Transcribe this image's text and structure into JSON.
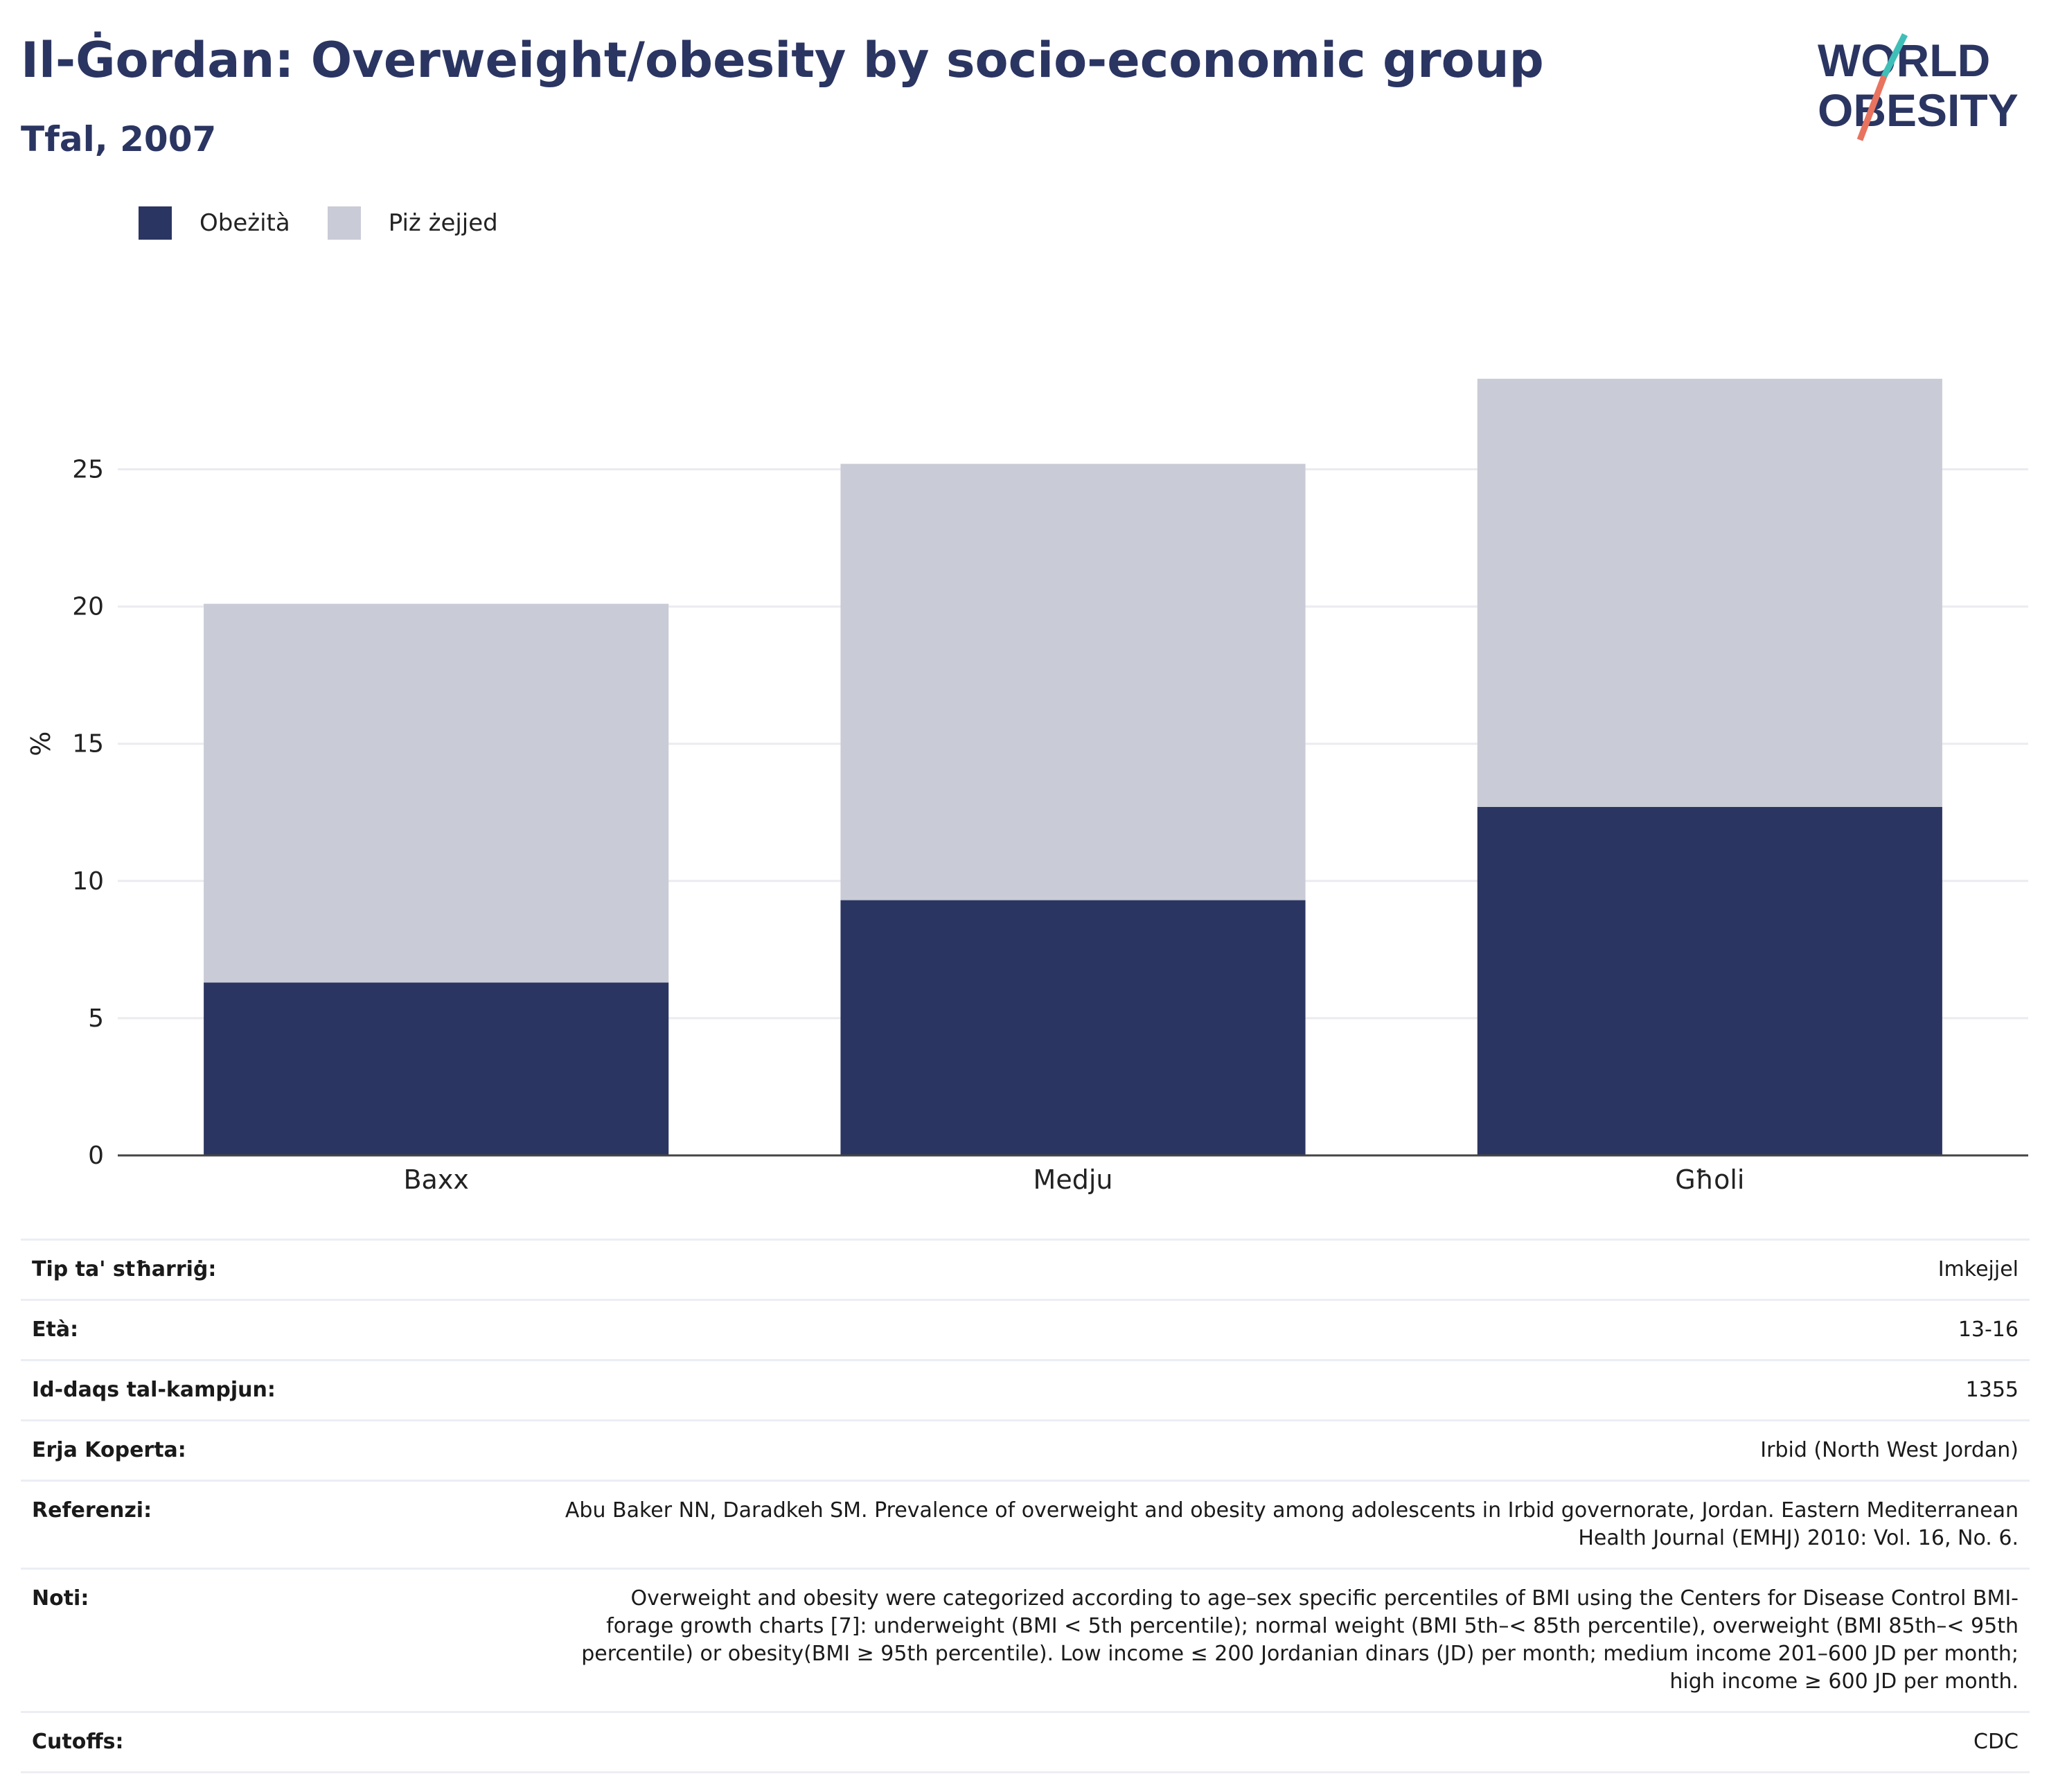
{
  "header": {
    "title": "Il-Ġordan: Overweight/obesity by socio-economic group",
    "subtitle": "Tfal, 2007"
  },
  "logo": {
    "line1": "WORLD",
    "line2": "OBESITY",
    "colors": {
      "text": "#2b3562",
      "slash_red": "#e8735f",
      "slash_teal": "#3fbfb7"
    }
  },
  "legend": [
    {
      "label": "Obeżità",
      "color": "#2b3562"
    },
    {
      "label": "Piż żejjed",
      "color": "#c9cbd6"
    }
  ],
  "chart_data": {
    "type": "bar",
    "stacked": true,
    "categories": [
      "Baxx",
      "Medju",
      "Għoli"
    ],
    "series": [
      {
        "name": "Obeżità",
        "values": [
          6.3,
          9.3,
          12.7
        ],
        "color": "#2b3562"
      },
      {
        "name": "Piż żejjed",
        "values": [
          13.8,
          15.9,
          15.6
        ],
        "color": "#c9cbd6"
      }
    ],
    "ylabel": "%",
    "yticks": [
      0,
      5,
      10,
      15,
      20,
      25
    ],
    "ylim": [
      0,
      31.5
    ],
    "grid": true,
    "legend_position": "top-left"
  },
  "details": [
    {
      "key": "Tip ta' stħarriġ:",
      "value": "Imkejjel"
    },
    {
      "key": "Età:",
      "value": "13-16"
    },
    {
      "key": "Id-daqs tal-kampjun:",
      "value": "1355"
    },
    {
      "key": "Erja Koperta:",
      "value": "Irbid (North West Jordan)"
    },
    {
      "key": "Referenzi:",
      "value": "Abu Baker NN, Daradkeh SM. Prevalence of overweight and obesity among adolescents in Irbid governorate, Jordan. Eastern Mediterranean Health Journal (EMHJ) 2010: Vol. 16, No. 6."
    },
    {
      "key": "Noti:",
      "value": "Overweight and obesity were categorized according to age–sex specific percentiles of BMI using the Centers for Disease Control BMI-forage growth charts [7]: underweight (BMI < 5th percentile); normal weight (BMI 5th–< 85th percentile), overweight (BMI 85th–< 95th percentile) or obesity(BMI ≥ 95th percentile). Low income ≤ 200 Jordanian dinars (JD) per month; medium income 201–600 JD per month; high income ≥ 600 JD per month."
    },
    {
      "key": "Cutoffs:",
      "value": "CDC"
    }
  ]
}
